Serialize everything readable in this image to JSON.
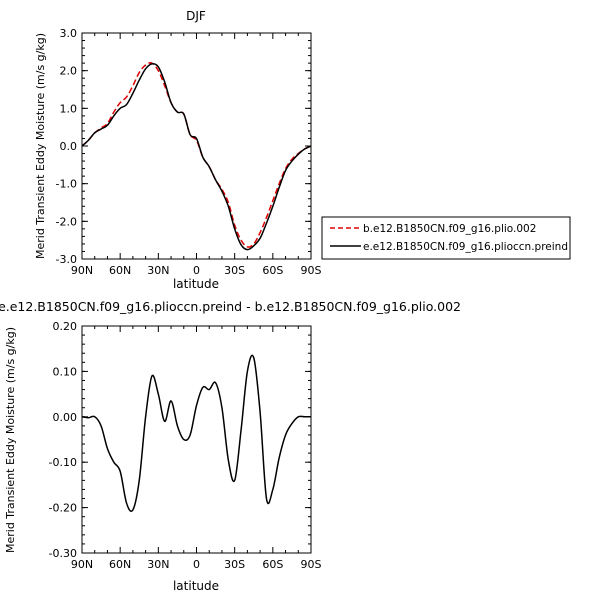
{
  "chart_data": [
    {
      "type": "line",
      "title": "DJF",
      "xlabel": "latitude",
      "ylabel": "Merid Transient Eddy Moisture (m/s g/kg)",
      "xlim": [
        90,
        -90
      ],
      "ylim": [
        -3.0,
        3.0
      ],
      "xticks": [
        90,
        60,
        30,
        0,
        -30,
        -60,
        -90
      ],
      "xtick_labels": [
        "90N",
        "60N",
        "30N",
        "0",
        "30S",
        "60S",
        "90S"
      ],
      "yticks": [
        3.0,
        2.0,
        1.0,
        0.0,
        -1.0,
        -2.0,
        -3.0
      ],
      "ytick_labels": [
        "3.0",
        "2.0",
        "1.0",
        "0.0",
        "-1.0",
        "-2.0",
        "-3.0"
      ],
      "legend_position": "right",
      "series": [
        {
          "name": "b.e12.B1850CN.f09_g16.plio.002",
          "color": "#e00000",
          "dash": "dashed",
          "x": [
            90,
            85,
            80,
            75,
            70,
            65,
            60,
            55,
            50,
            45,
            40,
            35,
            30,
            25,
            20,
            15,
            10,
            5,
            0,
            -5,
            -10,
            -15,
            -20,
            -25,
            -30,
            -35,
            -40,
            -45,
            -50,
            -55,
            -60,
            -65,
            -70,
            -75,
            -80,
            -85,
            -90
          ],
          "y": [
            0.0,
            0.15,
            0.35,
            0.48,
            0.6,
            0.9,
            1.15,
            1.3,
            1.6,
            1.95,
            2.15,
            2.2,
            2.0,
            1.6,
            1.15,
            0.9,
            0.85,
            0.3,
            0.15,
            -0.3,
            -0.55,
            -0.9,
            -1.15,
            -1.5,
            -2.1,
            -2.5,
            -2.68,
            -2.6,
            -2.3,
            -1.9,
            -1.45,
            -1.0,
            -0.6,
            -0.35,
            -0.2,
            -0.08,
            0.0
          ]
        },
        {
          "name": "e.e12.B1850CN.f09_g16.plioccn.preind",
          "color": "#000000",
          "dash": "solid",
          "x": [
            90,
            85,
            80,
            75,
            70,
            65,
            60,
            55,
            50,
            45,
            40,
            35,
            30,
            25,
            20,
            15,
            10,
            5,
            0,
            -5,
            -10,
            -15,
            -20,
            -25,
            -30,
            -35,
            -40,
            -45,
            -50,
            -55,
            -60,
            -65,
            -70,
            -75,
            -80,
            -85,
            -90
          ],
          "y": [
            0.0,
            0.15,
            0.35,
            0.45,
            0.55,
            0.8,
            1.0,
            1.1,
            1.4,
            1.75,
            2.05,
            2.18,
            2.1,
            1.7,
            1.15,
            0.9,
            0.85,
            0.3,
            0.2,
            -0.3,
            -0.55,
            -0.9,
            -1.2,
            -1.6,
            -2.2,
            -2.62,
            -2.75,
            -2.65,
            -2.45,
            -2.05,
            -1.6,
            -1.1,
            -0.65,
            -0.4,
            -0.22,
            -0.08,
            0.0
          ]
        }
      ]
    },
    {
      "type": "line",
      "title": "e.e12.B1850CN.f09_g16.plioccn.preind - b.e12.B1850CN.f09_g16.plio.002",
      "xlabel": "latitude",
      "ylabel": "Merid Transient Eddy Moisture (m/s g/kg)",
      "xlim": [
        90,
        -90
      ],
      "ylim": [
        -0.3,
        0.2
      ],
      "xticks": [
        90,
        60,
        30,
        0,
        -30,
        -60,
        -90
      ],
      "xtick_labels": [
        "90N",
        "60N",
        "30N",
        "0",
        "30S",
        "60S",
        "90S"
      ],
      "yticks": [
        0.2,
        0.1,
        0.0,
        -0.1,
        -0.2,
        -0.3
      ],
      "ytick_labels": [
        "0.20",
        "0.10",
        "0.00",
        "-0.10",
        "-0.20",
        "-0.30"
      ],
      "series": [
        {
          "color": "#000000",
          "dash": "solid",
          "x": [
            90,
            85,
            80,
            75,
            70,
            65,
            60,
            55,
            50,
            45,
            40,
            35,
            30,
            25,
            20,
            15,
            10,
            5,
            0,
            -5,
            -10,
            -15,
            -20,
            -25,
            -30,
            -35,
            -40,
            -45,
            -50,
            -55,
            -60,
            -65,
            -70,
            -75,
            -80,
            -85,
            -90
          ],
          "y": [
            0.0,
            -0.002,
            0.0,
            -0.02,
            -0.07,
            -0.1,
            -0.12,
            -0.19,
            -0.205,
            -0.14,
            0.0,
            0.09,
            0.05,
            -0.01,
            0.035,
            -0.02,
            -0.05,
            -0.04,
            0.025,
            0.065,
            0.06,
            0.075,
            0.02,
            -0.095,
            -0.14,
            -0.03,
            0.1,
            0.13,
            0.01,
            -0.18,
            -0.16,
            -0.09,
            -0.04,
            -0.015,
            0.0,
            0.0,
            0.0
          ]
        }
      ]
    }
  ]
}
